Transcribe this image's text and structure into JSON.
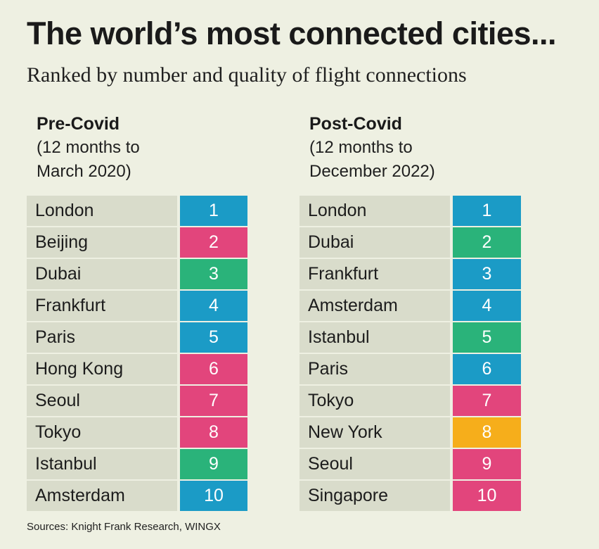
{
  "title": "The world’s most connected cities...",
  "subtitle": "Ranked by number and quality of flight connections",
  "colors": {
    "background": "#eef0e2",
    "city_cell": "#d9dccb",
    "blue": "#1b9bc6",
    "pink": "#e2457c",
    "green": "#2ab37a",
    "orange": "#f6ae1b"
  },
  "pre_covid": {
    "heading": "Pre-Covid",
    "period": "(12 months to\nMarch 2020)",
    "rows": [
      {
        "city": "London",
        "rank": "1",
        "color": "blue"
      },
      {
        "city": "Beijing",
        "rank": "2",
        "color": "pink"
      },
      {
        "city": "Dubai",
        "rank": "3",
        "color": "green"
      },
      {
        "city": "Frankfurt",
        "rank": "4",
        "color": "blue"
      },
      {
        "city": "Paris",
        "rank": "5",
        "color": "blue"
      },
      {
        "city": "Hong Kong",
        "rank": "6",
        "color": "pink"
      },
      {
        "city": "Seoul",
        "rank": "7",
        "color": "pink"
      },
      {
        "city": "Tokyo",
        "rank": "8",
        "color": "pink"
      },
      {
        "city": "Istanbul",
        "rank": "9",
        "color": "green"
      },
      {
        "city": "Amsterdam",
        "rank": "10",
        "color": "blue"
      }
    ]
  },
  "post_covid": {
    "heading": "Post-Covid",
    "period": "(12 months to\nDecember 2022)",
    "rows": [
      {
        "city": "London",
        "rank": "1",
        "color": "blue"
      },
      {
        "city": "Dubai",
        "rank": "2",
        "color": "green"
      },
      {
        "city": "Frankfurt",
        "rank": "3",
        "color": "blue"
      },
      {
        "city": "Amsterdam",
        "rank": "4",
        "color": "blue"
      },
      {
        "city": "Istanbul",
        "rank": "5",
        "color": "green"
      },
      {
        "city": "Paris",
        "rank": "6",
        "color": "blue"
      },
      {
        "city": "Tokyo",
        "rank": "7",
        "color": "pink"
      },
      {
        "city": "New York",
        "rank": "8",
        "color": "orange"
      },
      {
        "city": "Seoul",
        "rank": "9",
        "color": "pink"
      },
      {
        "city": "Singapore",
        "rank": "10",
        "color": "pink"
      }
    ]
  },
  "source": "Sources: Knight Frank Research, WINGX"
}
